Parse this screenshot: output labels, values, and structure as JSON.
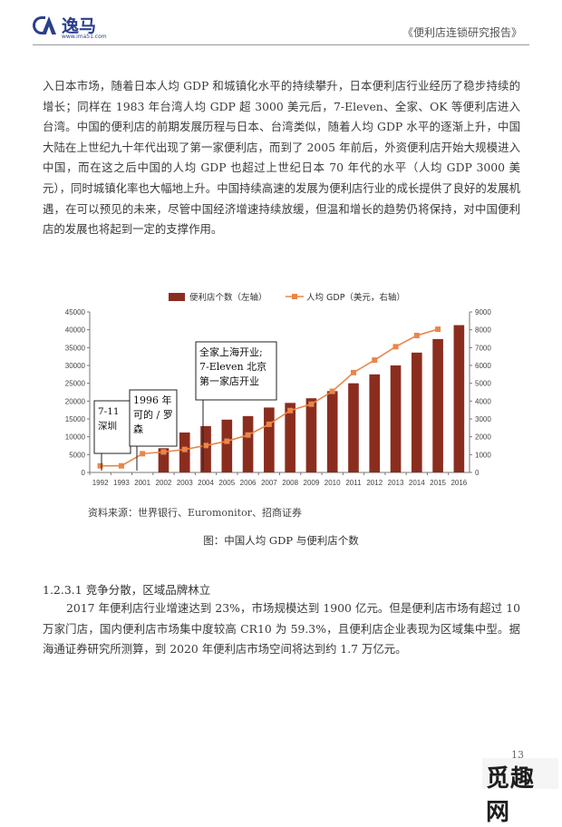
{
  "header": {
    "logo_text": "逸马",
    "logo_url": "www.ima51.com",
    "title": "《便利店连锁研究报告》"
  },
  "body": {
    "paragraph1": "入日本市场，随着日本人均 GDP 和城镇化水平的持续攀升，日本便利店行业经历了稳步持续的增长；同样在 1983 年台湾人均 GDP 超 3000 美元后，7-Eleven、全家、OK 等便利店进入台湾。中国的便利店的前期发展历程与日本、台湾类似，随着人均 GDP 水平的逐渐上升，中国大陆在上世纪九十年代出现了第一家便利店，而到了 2005 年前后，外资便利店开始大规模进入中国，而在这之后中国的人均 GDP 也超过上世纪日本 70 年代的水平（人均 GDP 3000 美元），同时城镇化率也大幅地上升。中国持续高速的发展为便利店行业的成长提供了良好的发展机遇，在可以预见的未来，尽管中国经济增速持续放缓，但温和增长的趋势仍将保持，对中国便利店的发展也将起到一定的支撑作用。",
    "source": "资料来源：世界银行、Euromonitor、招商证券",
    "caption": "图：中国人均 GDP 与便利店个数",
    "subheading": "1.2.3.1 竞争分散，区域品牌林立",
    "paragraph2": "2017 年便利店行业增速达到 23%，市场规模达到 1900 亿元。但是便利店市场有超过 10 万家门店，国内便利店市场集中度较高 CR10 为 59.3%，且便利店企业表现为区域集中型。据海通证券研究所测算，到 2020 年便利店市场空间将达到约 1.7 万亿元。",
    "page_number": "13"
  },
  "watermark": {
    "text": "觅趣网"
  },
  "chart_data": {
    "type": "bar",
    "categories": [
      "1992",
      "1993",
      "2001",
      "2002",
      "2003",
      "2004",
      "2005",
      "2006",
      "2007",
      "2008",
      "2009",
      "2010",
      "2011",
      "2012",
      "2013",
      "2014",
      "2015",
      "2016"
    ],
    "series": [
      {
        "name": "便利店个数（左轴）",
        "type": "bar",
        "axis": "left",
        "color": "#8b2d1e",
        "values": [
          null,
          null,
          null,
          6800,
          11200,
          13000,
          14800,
          15800,
          18200,
          19500,
          20800,
          22800,
          25000,
          27500,
          30000,
          33600,
          37400,
          41300
        ]
      },
      {
        "name": "人均 GDP（美元，右轴）",
        "type": "line",
        "axis": "right",
        "color": "#e8864a",
        "values": [
          370,
          370,
          1050,
          1150,
          1290,
          1510,
          1750,
          2100,
          2700,
          3470,
          3830,
          4550,
          5600,
          6300,
          7050,
          7680,
          8030,
          null
        ]
      }
    ],
    "y_left": {
      "min": 0,
      "max": 45000,
      "ticks": [
        "0",
        "5000",
        "10000",
        "15000",
        "20000",
        "25000",
        "30000",
        "35000",
        "40000",
        "45000"
      ]
    },
    "y_right": {
      "min": 0,
      "max": 9000,
      "ticks": [
        "0",
        "1000",
        "2000",
        "3000",
        "4000",
        "5000",
        "6000",
        "7000",
        "8000",
        "9000"
      ]
    },
    "legend_position": "top",
    "annotations": [
      {
        "text": "7-11\n深圳",
        "category": "1992"
      },
      {
        "text": "1996 年\n可的 / 罗\n森",
        "category": "2001"
      },
      {
        "text": "全家上海开业;\n7-Eleven 北京\n第一家店开业",
        "category": "2004"
      }
    ]
  }
}
